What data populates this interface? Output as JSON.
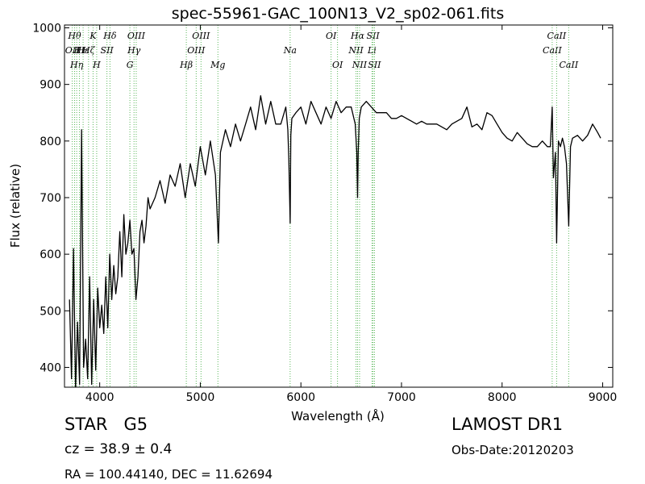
{
  "chart_data": {
    "type": "line",
    "title": "spec-55961-GAC_100N13_V2_sp02-061.fits",
    "xlabel": "Wavelength (Å)",
    "ylabel": "Flux (relative)",
    "xlim": [
      3650,
      9100
    ],
    "ylim": [
      365,
      1005
    ],
    "xticks": [
      4000,
      5000,
      6000,
      7000,
      8000,
      9000
    ],
    "yticks": [
      400,
      500,
      600,
      700,
      800,
      900,
      1000
    ],
    "grid": false,
    "series": [
      {
        "color": "#000000",
        "x": [
          3700,
          3720,
          3740,
          3760,
          3780,
          3800,
          3820,
          3840,
          3860,
          3880,
          3900,
          3920,
          3940,
          3960,
          3980,
          4000,
          4020,
          4040,
          4060,
          4080,
          4100,
          4120,
          4140,
          4160,
          4180,
          4200,
          4220,
          4240,
          4260,
          4280,
          4300,
          4320,
          4340,
          4360,
          4380,
          4400,
          4420,
          4440,
          4460,
          4480,
          4500,
          4550,
          4600,
          4650,
          4700,
          4750,
          4800,
          4850,
          4900,
          4950,
          5000,
          5050,
          5100,
          5150,
          5180,
          5200,
          5250,
          5300,
          5350,
          5400,
          5450,
          5500,
          5550,
          5600,
          5650,
          5700,
          5750,
          5800,
          5850,
          5870,
          5880,
          5893,
          5900,
          5910,
          5950,
          6000,
          6050,
          6100,
          6150,
          6200,
          6250,
          6300,
          6350,
          6400,
          6450,
          6500,
          6540,
          6555,
          6563,
          6570,
          6580,
          6600,
          6650,
          6700,
          6750,
          6800,
          6850,
          6900,
          6950,
          7000,
          7050,
          7100,
          7150,
          7200,
          7250,
          7300,
          7350,
          7400,
          7450,
          7500,
          7550,
          7600,
          7650,
          7700,
          7750,
          7800,
          7850,
          7900,
          7950,
          8000,
          8050,
          8100,
          8150,
          8200,
          8250,
          8300,
          8350,
          8400,
          8450,
          8480,
          8498,
          8510,
          8530,
          8542,
          8560,
          8580,
          8600,
          8620,
          8640,
          8662,
          8680,
          8700,
          8750,
          8800,
          8850,
          8900,
          8950,
          8980
        ],
        "values": [
          520,
          380,
          610,
          360,
          480,
          370,
          820,
          400,
          450,
          380,
          560,
          370,
          520,
          395,
          540,
          470,
          510,
          460,
          560,
          470,
          600,
          520,
          580,
          530,
          560,
          640,
          560,
          670,
          600,
          620,
          660,
          600,
          610,
          520,
          560,
          640,
          660,
          620,
          650,
          700,
          680,
          700,
          730,
          690,
          740,
          720,
          760,
          700,
          760,
          720,
          790,
          740,
          800,
          740,
          620,
          780,
          820,
          790,
          830,
          800,
          830,
          860,
          820,
          880,
          830,
          870,
          830,
          830,
          860,
          820,
          770,
          655,
          810,
          840,
          850,
          860,
          830,
          870,
          850,
          830,
          860,
          840,
          870,
          850,
          860,
          860,
          830,
          780,
          700,
          780,
          840,
          860,
          870,
          860,
          850,
          850,
          850,
          840,
          840,
          845,
          840,
          835,
          830,
          835,
          830,
          830,
          830,
          825,
          820,
          830,
          835,
          840,
          860,
          825,
          830,
          820,
          850,
          845,
          830,
          815,
          805,
          800,
          815,
          805,
          795,
          790,
          790,
          800,
          790,
          790,
          860,
          735,
          780,
          620,
          800,
          790,
          805,
          790,
          760,
          650,
          790,
          805,
          810,
          800,
          810,
          830,
          815,
          805
        ]
      }
    ],
    "lines": [
      {
        "x": 3727,
        "label": "OII",
        "row": 1
      },
      {
        "x": 3750,
        "label": "Hθ",
        "row": 0
      },
      {
        "x": 3771,
        "label": "Hη",
        "row": 2
      },
      {
        "x": 3798,
        "label": "Hι",
        "row": 1
      },
      {
        "x": 3835,
        "label": "Hε",
        "row": 1
      },
      {
        "x": 3889,
        "label": "Hζ",
        "row": 1
      },
      {
        "x": 3934,
        "label": "K",
        "row": 0
      },
      {
        "x": 3970,
        "label": "H",
        "row": 2
      },
      {
        "x": 4072,
        "label": "SII",
        "row": 1
      },
      {
        "x": 4102,
        "label": "Hδ",
        "row": 0
      },
      {
        "x": 4300,
        "label": "G",
        "row": 2
      },
      {
        "x": 4341,
        "label": "Hγ",
        "row": 1
      },
      {
        "x": 4363,
        "label": "OIII",
        "row": 0
      },
      {
        "x": 4861,
        "label": "Hβ",
        "row": 2
      },
      {
        "x": 4959,
        "label": "OIII",
        "row": 1
      },
      {
        "x": 5007,
        "label": "OIII",
        "row": 0
      },
      {
        "x": 5175,
        "label": "Mg",
        "row": 2
      },
      {
        "x": 5893,
        "label": "Na",
        "row": 1
      },
      {
        "x": 6300,
        "label": "OI",
        "row": 0
      },
      {
        "x": 6364,
        "label": "OI",
        "row": 2
      },
      {
        "x": 6548,
        "label": "NII",
        "row": 1
      },
      {
        "x": 6563,
        "label": "Hα",
        "row": 0
      },
      {
        "x": 6583,
        "label": "NII",
        "row": 2
      },
      {
        "x": 6707,
        "label": "Li",
        "row": 1
      },
      {
        "x": 6717,
        "label": "SII",
        "row": 0
      },
      {
        "x": 6731,
        "label": "SII",
        "row": 2
      },
      {
        "x": 8498,
        "label": "CaII",
        "row": 1
      },
      {
        "x": 8542,
        "label": "CaII",
        "row": 0
      },
      {
        "x": 8662,
        "label": "CaII",
        "row": 2
      }
    ]
  },
  "info": {
    "class": "STAR",
    "subclass": "G5",
    "cz": "cz = 38.9 ± 0.4",
    "radec": "RA = 100.44140, DEC = 11.62694",
    "survey": "LAMOST DR1",
    "obs_date": "Obs-Date:20120203"
  }
}
